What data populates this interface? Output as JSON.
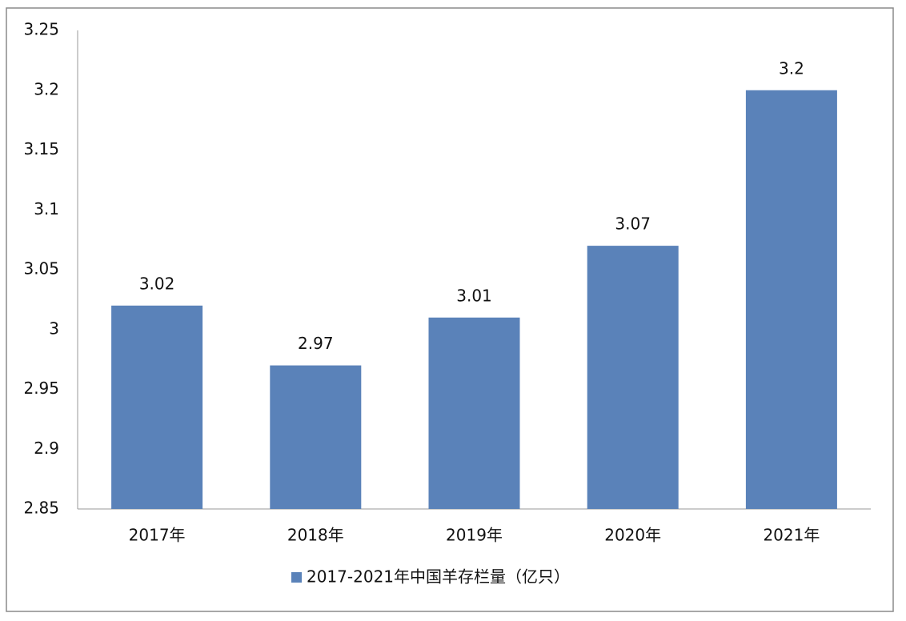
{
  "chart_data": {
    "type": "bar",
    "categories": [
      "2017年",
      "2018年",
      "2019年",
      "2020年",
      "2021年"
    ],
    "series": [
      {
        "name": "2017-2021年中国羊存栏量（亿只）",
        "color": "#5a82b9",
        "values": [
          3.02,
          2.97,
          3.01,
          3.07,
          3.2
        ]
      }
    ],
    "ylim": [
      2.85,
      3.25
    ],
    "yticks": [
      2.85,
      2.9,
      2.95,
      3,
      3.05,
      3.1,
      3.15,
      3.2,
      3.25
    ],
    "grid": false,
    "legend": "bottom"
  }
}
